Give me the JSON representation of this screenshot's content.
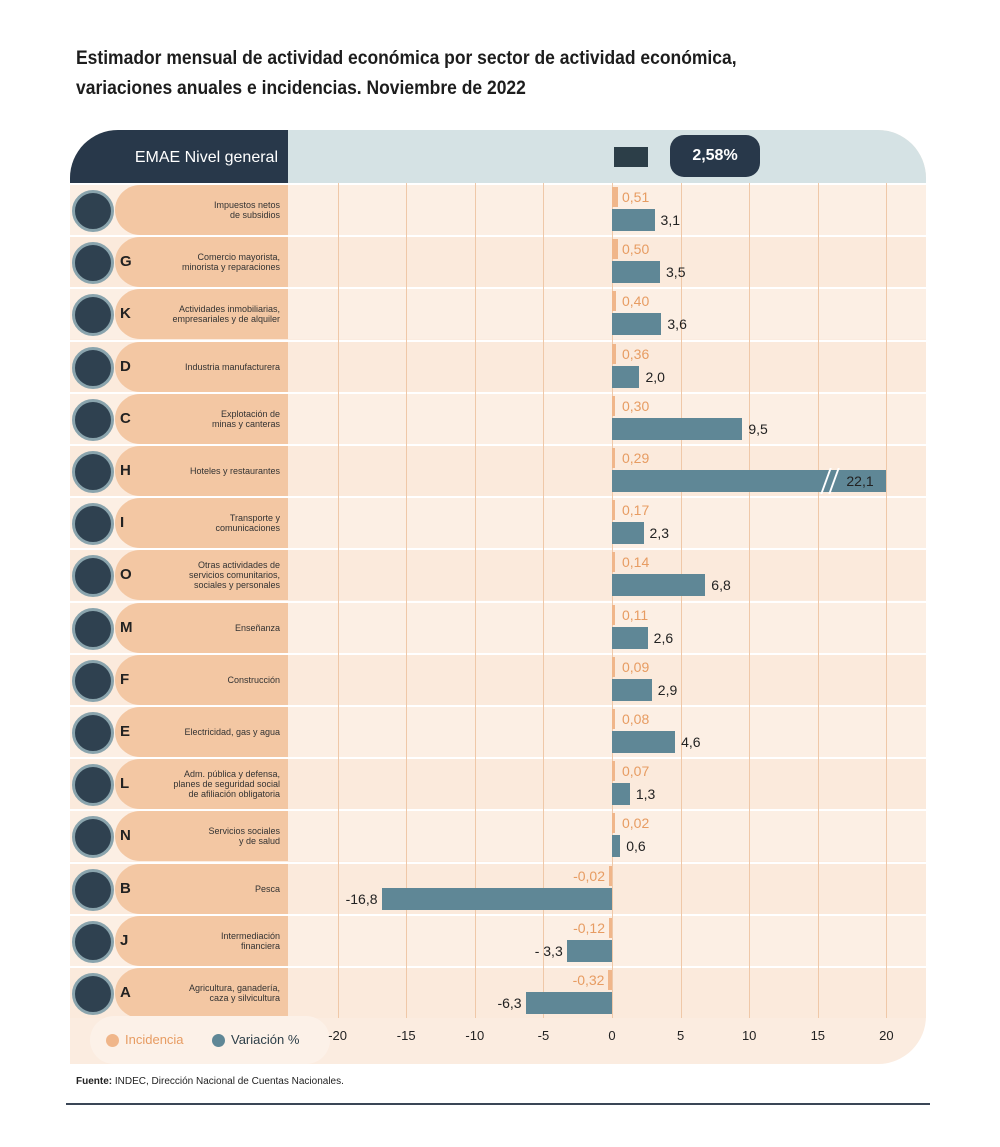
{
  "title": "Estimador mensual de actividad económica por sector de actividad económica, variaciones anuales e incidencias. Noviembre de 2022",
  "source_label": "Fuente:",
  "source_text": " INDEC, Dirección Nacional de Cuentas Nacionales.",
  "chart_data": {
    "type": "bar",
    "header_label": "EMAE Nivel general",
    "header_value": "2,58%",
    "xlim": [
      -20,
      20
    ],
    "ticks": [
      -20,
      -15,
      -10,
      -5,
      0,
      5,
      10,
      15,
      20
    ],
    "legend": [
      "Incidencia",
      "Variación %"
    ],
    "colors": {
      "incidencia": "#f0b68a",
      "variacion": "#5f8796"
    },
    "rows": [
      {
        "letter": "",
        "label": "Impuestos netos\nde subsidios",
        "incidencia": 0.51,
        "variacion": 3.1,
        "inc_text": "0,51",
        "var_text": "3,1"
      },
      {
        "letter": "G",
        "label": "Comercio mayorista,\nminorista y reparaciones",
        "incidencia": 0.5,
        "variacion": 3.5,
        "inc_text": "0,50",
        "var_text": "3,5"
      },
      {
        "letter": "K",
        "label": "Actividades inmobiliarias,\nempresariales y de alquiler",
        "incidencia": 0.4,
        "variacion": 3.6,
        "inc_text": "0,40",
        "var_text": "3,6"
      },
      {
        "letter": "D",
        "label": "Industria manufacturera",
        "incidencia": 0.36,
        "variacion": 2.0,
        "inc_text": "0,36",
        "var_text": "2,0"
      },
      {
        "letter": "C",
        "label": "Explotación de\nminas y canteras",
        "incidencia": 0.3,
        "variacion": 9.5,
        "inc_text": "0,30",
        "var_text": "9,5"
      },
      {
        "letter": "H",
        "label": "Hoteles y restaurantes",
        "incidencia": 0.29,
        "variacion": 22.1,
        "inc_text": "0,29",
        "var_text": "22,1"
      },
      {
        "letter": "I",
        "label": "Transporte y\ncomunicaciones",
        "incidencia": 0.17,
        "variacion": 2.3,
        "inc_text": "0,17",
        "var_text": "2,3"
      },
      {
        "letter": "O",
        "label": "Otras actividades de\nservicios comunitarios,\nsociales y personales",
        "incidencia": 0.14,
        "variacion": 6.8,
        "inc_text": "0,14",
        "var_text": "6,8"
      },
      {
        "letter": "M",
        "label": "Enseñanza",
        "incidencia": 0.11,
        "variacion": 2.6,
        "inc_text": "0,11",
        "var_text": "2,6"
      },
      {
        "letter": "F",
        "label": "Construcción",
        "incidencia": 0.09,
        "variacion": 2.9,
        "inc_text": "0,09",
        "var_text": "2,9"
      },
      {
        "letter": "E",
        "label": "Electricidad, gas y agua",
        "incidencia": 0.08,
        "variacion": 4.6,
        "inc_text": "0,08",
        "var_text": "4,6"
      },
      {
        "letter": "L",
        "label": "Adm. pública y defensa,\nplanes de seguridad social\nde afiliación obligatoria",
        "incidencia": 0.07,
        "variacion": 1.3,
        "inc_text": "0,07",
        "var_text": "1,3"
      },
      {
        "letter": "N",
        "label": "Servicios sociales\ny de salud",
        "incidencia": 0.02,
        "variacion": 0.6,
        "inc_text": "0,02",
        "var_text": "0,6"
      },
      {
        "letter": "B",
        "label": "Pesca",
        "incidencia": -0.02,
        "variacion": -16.8,
        "inc_text": "-0,02",
        "var_text": "-16,8"
      },
      {
        "letter": "J",
        "label": "Intermediación\nfinanciera",
        "incidencia": -0.12,
        "variacion": -3.3,
        "inc_text": "-0,12",
        "var_text": "- 3,3"
      },
      {
        "letter": "A",
        "label": "Agricultura, ganadería,\ncaza y silvicultura",
        "incidencia": -0.32,
        "variacion": -6.3,
        "inc_text": "-0,32",
        "var_text": "-6,3"
      }
    ]
  }
}
